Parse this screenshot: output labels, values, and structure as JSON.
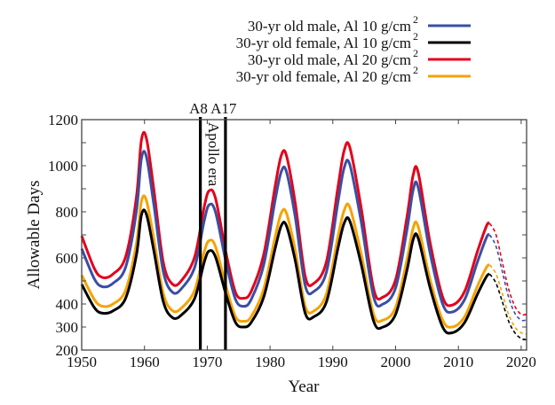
{
  "chart_data": {
    "type": "line",
    "title": "",
    "xlabel": "Year",
    "ylabel": "Allowable Days",
    "xlim": [
      1950,
      2020.8
    ],
    "ylim": [
      200,
      1200
    ],
    "xticks": [
      1950,
      1960,
      1970,
      1980,
      1990,
      2000,
      2010,
      2020
    ],
    "xtick_labels": [
      "1950",
      "1960",
      "1970",
      "1980",
      "1990",
      "2000",
      "2010",
      "2020"
    ],
    "yticks": [
      200,
      300,
      400,
      600,
      800,
      1000,
      1200
    ],
    "yticks_minor": [
      500,
      700,
      900,
      1100
    ],
    "ytick_labels": [
      "200",
      "300",
      "400",
      "600",
      "800",
      "1000",
      "1200"
    ],
    "grid": false,
    "legend_position": "top-right-outside",
    "x": [
      1950,
      1952,
      1953.3,
      1955,
      1957,
      1958.7,
      1959.5,
      1960.3,
      1961.5,
      1963,
      1964.5,
      1966,
      1968,
      1969.5,
      1970.3,
      1971.3,
      1973,
      1974.5,
      1975.8,
      1977,
      1979,
      1980.8,
      1981.8,
      1982.6,
      1984,
      1985.6,
      1987,
      1989,
      1990.8,
      1991.8,
      1992.7,
      1994.5,
      1996.5,
      1998,
      2000,
      2001.8,
      2002.8,
      2003.6,
      2005.5,
      2007.5,
      2009,
      2011,
      2013,
      2014.5,
      2015
    ],
    "projection_x": [
      2015,
      2016,
      2017,
      2018,
      2019,
      2020,
      2020.8
    ],
    "series": [
      {
        "name": "30-yr old   male, Al 10 g/cm2",
        "label_main": "30-yr old   male, Al 10 g/cm",
        "label_sup": "2",
        "color": "#3a4fa3",
        "values": [
          640,
          510,
          475,
          490,
          560,
          800,
          1030,
          1040,
          830,
          540,
          450,
          470,
          560,
          760,
          830,
          800,
          580,
          420,
          390,
          420,
          570,
          850,
          975,
          975,
          780,
          480,
          455,
          540,
          840,
          990,
          1005,
          760,
          430,
          400,
          470,
          720,
          895,
          905,
          620,
          400,
          365,
          420,
          580,
          690,
          700
        ],
        "projection": [
          700,
          650,
          540,
          430,
          360,
          330,
          330
        ]
      },
      {
        "name": "30-yr old female, Al 10 g/cm2",
        "label_main": "30-yr old female, Al 10 g/cm",
        "label_sup": "2",
        "color": "#000000",
        "values": [
          485,
          385,
          360,
          370,
          425,
          610,
          785,
          790,
          630,
          410,
          340,
          355,
          425,
          580,
          630,
          605,
          440,
          320,
          300,
          320,
          430,
          640,
          740,
          740,
          590,
          360,
          345,
          410,
          640,
          750,
          760,
          575,
          325,
          300,
          355,
          545,
          680,
          685,
          470,
          300,
          275,
          320,
          440,
          520,
          530
        ],
        "projection": [
          530,
          490,
          410,
          325,
          275,
          250,
          245
        ]
      },
      {
        "name": "30-yr old   male, Al 20 g/cm2",
        "label_main": "30-yr old   male, Al 20 g/cm",
        "label_sup": "2",
        "color": "#e3001b",
        "values": [
          695,
          555,
          515,
          530,
          605,
          860,
          1110,
          1120,
          895,
          580,
          485,
          505,
          605,
          820,
          891,
          860,
          620,
          450,
          425,
          455,
          615,
          910,
          1045,
          1045,
          840,
          520,
          490,
          585,
          905,
          1065,
          1080,
          820,
          465,
          430,
          505,
          775,
          960,
          970,
          665,
          430,
          395,
          455,
          625,
          740,
          750
        ],
        "projection": [
          750,
          700,
          580,
          465,
          390,
          355,
          355
        ]
      },
      {
        "name": "30-yr old female, Al 20 g/cm2",
        "label_main": "30-yr old female, Al 20 g/cm",
        "label_sup": "2",
        "color": "#f5a300",
        "values": [
          525,
          420,
          390,
          400,
          460,
          660,
          845,
          850,
          680,
          445,
          370,
          385,
          460,
          625,
          675,
          650,
          475,
          345,
          325,
          345,
          465,
          690,
          795,
          795,
          635,
          390,
          370,
          445,
          690,
          805,
          820,
          620,
          355,
          330,
          385,
          590,
          730,
          735,
          505,
          330,
          300,
          345,
          475,
          560,
          570
        ],
        "projection": [
          570,
          530,
          445,
          355,
          300,
          275,
          270
        ]
      }
    ],
    "vertical_lines": [
      {
        "x": 1968.9,
        "label": "A8"
      },
      {
        "x": 1972.9,
        "label": "A17"
      }
    ],
    "annotations": [
      {
        "text": "Apollo era",
        "x": 1970.9,
        "y": 1175,
        "rotation": "vertical"
      }
    ]
  }
}
